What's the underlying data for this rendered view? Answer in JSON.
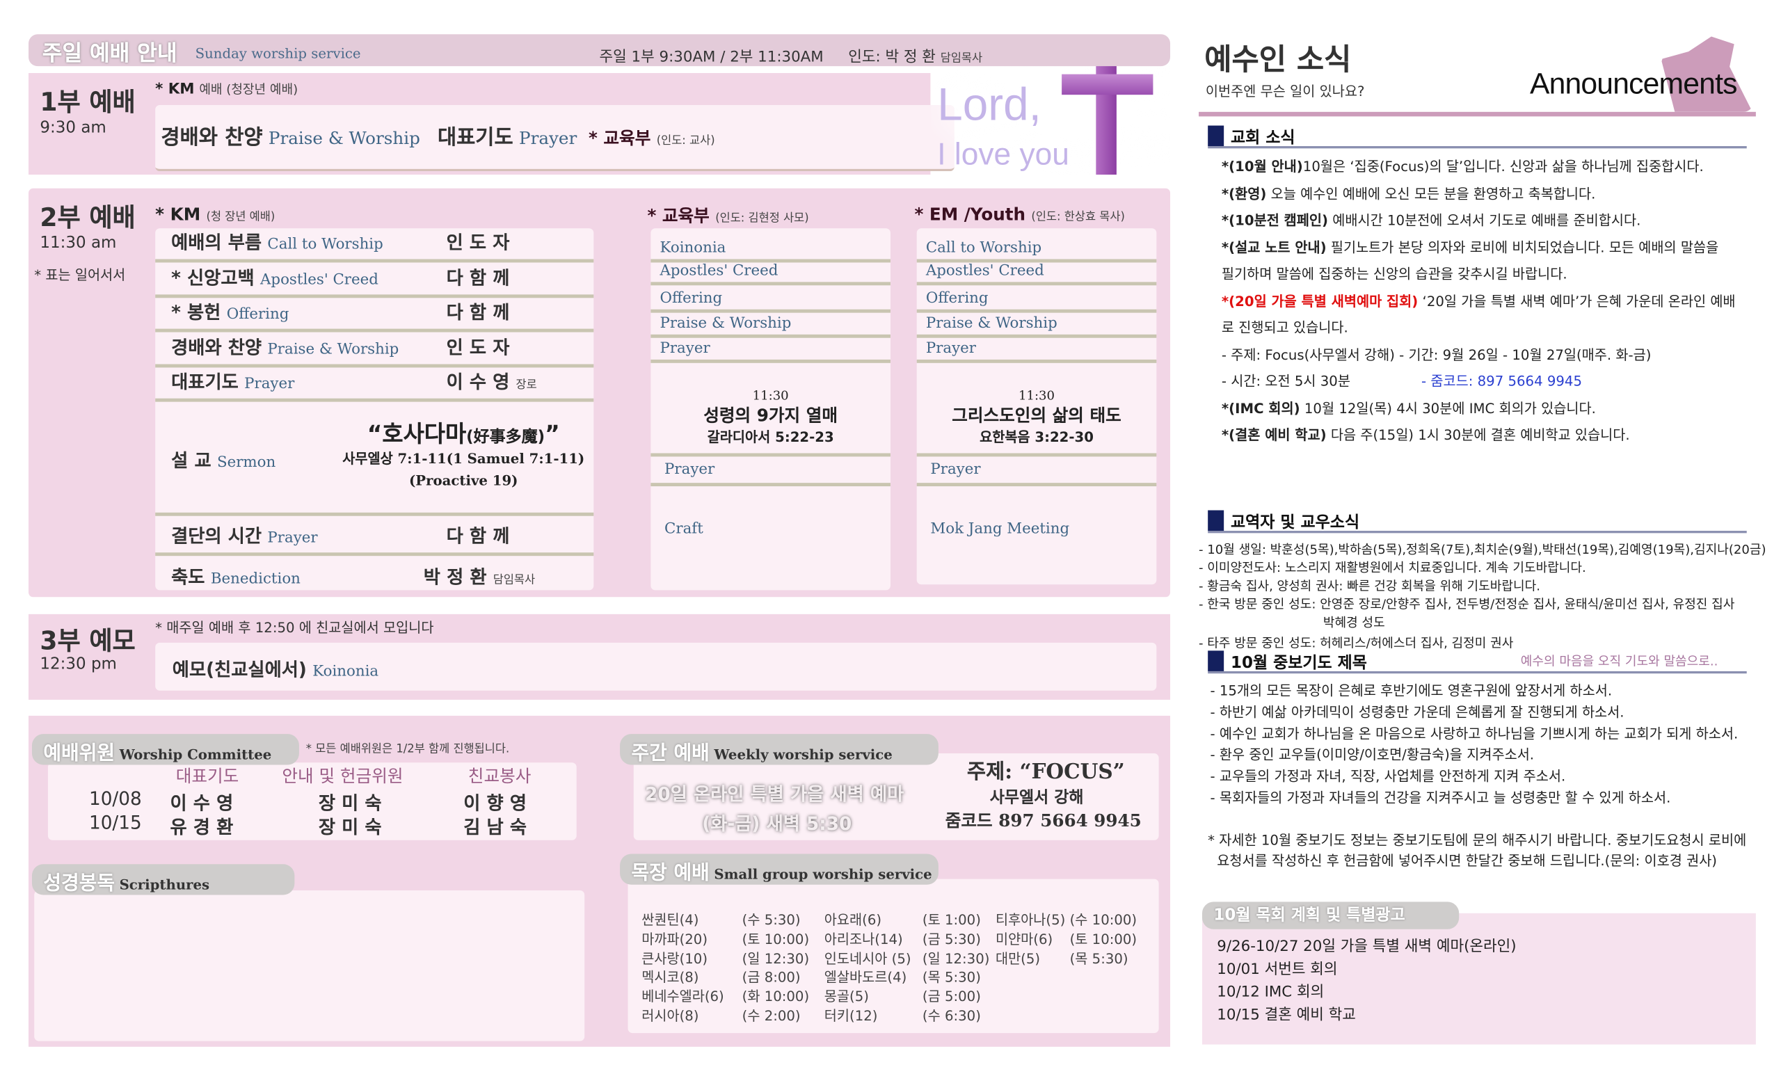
{
  "header": {
    "title_ko": "주일 예배 안내",
    "title_en": "Sunday worship service",
    "times": "주일 1부 9:30AM / 2부 11:30AM",
    "leader": "인도: 박 정 환",
    "leader_role": "담임목사"
  },
  "banner": {
    "line1": "Lord,",
    "line2": "I love you"
  },
  "service1": {
    "title": "1부 예배",
    "time": "9:30 am",
    "note_ko": "* KM",
    "note_rest": "예배 (청장년 예배)",
    "item1_ko": "경배와 찬양",
    "item1_en": "Praise & Worship",
    "item2_ko": "대표기도",
    "item2_en": "Prayer",
    "edu": "* 교육부",
    "edu_note": "(인도: 교사)"
  },
  "service2": {
    "title": "2부 예배",
    "time": "11:30 am",
    "standing_note": "* 표는 일어서서",
    "km": {
      "title": "* KM",
      "note": "(청 장년 예배)",
      "rows": [
        {
          "ko": "예배의 부름",
          "en": "Call to Worship",
          "who": "인 도 자",
          "role": ""
        },
        {
          "ko": "* 신앙고백",
          "en": "Apostles' Creed",
          "who": "다 함 께",
          "role": ""
        },
        {
          "ko": "* 봉헌",
          "en": "Offering",
          "who": "다 함 께",
          "role": ""
        },
        {
          "ko": "경배와 찬양",
          "en": "Praise & Worship",
          "who": "인 도 자",
          "role": ""
        },
        {
          "ko": "대표기도",
          "en": "Prayer",
          "who": "이 수 영",
          "role": "장로"
        }
      ],
      "sermon": {
        "ko": "설 교",
        "en": "Sermon",
        "title": "“호사다마",
        "hanja": "(好事多魔)",
        "close": "”",
        "verse": "사무엘상 7:1-11(1 Samuel 7:1-11)",
        "series": "(Proactive 19)"
      },
      "rows2": [
        {
          "ko": "결단의 시간",
          "en": "Prayer",
          "who": "다 함 께",
          "role": ""
        },
        {
          "ko": "축도",
          "en": "Benediction",
          "who": "박 정 환",
          "role": "담임목사"
        }
      ]
    },
    "edu": {
      "title": "* 교육부",
      "note": "(인도:  김현정 사모)",
      "items": [
        "Koinonia",
        "Apostles' Creed",
        "Offering",
        "Praise & Worship",
        "Prayer"
      ],
      "time": "11:30",
      "sermon": "성령의 9가지 열매",
      "verse": "갈라디아서 5:22-23",
      "after": [
        "Prayer",
        "Craft"
      ]
    },
    "em": {
      "title": "* EM /Youth",
      "note": "(인도: 한상효 목사)",
      "items": [
        "Call to Worship",
        "Apostles' Creed",
        "Offering",
        "Praise & Worship",
        "Prayer"
      ],
      "time": "11:30",
      "sermon": "그리스도인의 삶의 태도",
      "verse": "요한복음 3:22-30",
      "after": [
        "Prayer",
        "Mok Jang Meeting"
      ]
    }
  },
  "service3": {
    "title": "3부 예모",
    "time": "12:30 pm",
    "note": "* 매주일 예배 후 12:50 에 친교실에서 모입니다",
    "item_ko": "예모(친교실에서)",
    "item_en": "Koinonia"
  },
  "committee": {
    "title_ko": "예배위원",
    "title_en": "Worship Committee",
    "note": "* 모든 예배위원은 1/2부 함께 진행됩니다.",
    "headers": [
      "대표기도",
      "안내 및 헌금위원",
      "친교봉사"
    ],
    "rows": [
      {
        "date": "10/08",
        "prayer": "이 수 영",
        "usher": "장 미 숙",
        "fellowship": "이 향 영"
      },
      {
        "date": "10/15",
        "prayer": "유 경 환",
        "usher": "장 미 숙",
        "fellowship": "김 남 숙"
      }
    ]
  },
  "scriptures": {
    "title_ko": "성경봉독",
    "title_en": "Scripthures"
  },
  "weekly": {
    "title_ko": "주간 예배",
    "title_en": "Weekly worship service",
    "line1": "20일 온라인 특별 가을 새벽 예마",
    "line2": "(화-금) 새벽 5:30",
    "theme": "주제: “FOCUS”",
    "speaker": "사무엘서 강해",
    "zoom": "줌코드 897 5664 9945"
  },
  "smallgroup": {
    "title_ko": "목장 예배",
    "title_en": "Small group worship service",
    "rows": [
      [
        [
          "싼퀀틴(4)",
          "(수 5:30)"
        ],
        [
          "아요래(6)",
          "(토 1:00)"
        ],
        [
          "티후아나(5)",
          "(수 10:00)"
        ]
      ],
      [
        [
          "마까파(20)",
          "(토 10:00)"
        ],
        [
          "아리조나(14)",
          "(금 5:30)"
        ],
        [
          "미얀마(6)",
          "(토 10:00)"
        ]
      ],
      [
        [
          "큰사랑(10)",
          "(일 12:30)"
        ],
        [
          "인도네시아 (5)",
          "(일 12:30)"
        ],
        [
          "대만(5)",
          "(목 5:30)"
        ]
      ],
      [
        [
          "멕시코(8)",
          "(금 8:00)"
        ],
        [
          "엘살바도르(4)",
          "(목 5:30)"
        ]
      ],
      [
        [
          "베네수엘라(6)",
          "(화 10:00)"
        ],
        [
          "몽골(5)",
          "(금 5:00)"
        ]
      ],
      [
        [
          "러시아(8)",
          "(수 2:00)"
        ],
        [
          "터키(12)",
          "(수 6:30)"
        ]
      ]
    ]
  },
  "announcements": {
    "title": "예수인 소식",
    "subtitle": "이번주엔 무슨 일이 있나요?",
    "title_en": "Announcements",
    "church": {
      "heading": "교회 소식",
      "items": [
        {
          "label": "*(10월 안내)",
          "text": "10월은 ‘집중(Focus)의 달’입니다. 신앙과 삶을 하나님께 집중합시다."
        },
        {
          "label": "*(환영)",
          "text": " 오늘 예수인 예배에 오신 모든 분을 환영하고 축복합니다."
        },
        {
          "label": "*(10분전 캠페인)",
          "text": " 예배시간 10분전에 오셔서 기도로 예배를 준비합시다."
        },
        {
          "label": "*(설교 노트 안내)",
          "text": " 필기노트가 본당 의자와 로비에 비치되었습니다. 모든 예배의 말씀을"
        },
        {
          "label": "",
          "text": "필기하며 말씀에 집중하는 신앙의 습관을 갖추시길 바랍니다."
        },
        {
          "label": "*(20일 가을 특별 새벽예마 집회)",
          "text": " ‘20일 가을 특별 새벽 예마’가 은혜 가운데 온라인 예배",
          "red": true
        },
        {
          "label": "",
          "text": "로 진행되고 있습니다."
        },
        {
          "label": "",
          "text": "  - 주제: Focus(사무엘서 강해)   - 기간: 9월 26일 - 10월 27일(매주. 화-금)"
        },
        {
          "label": "",
          "text": "  - 시간: 오전 5시 30분",
          "zoom": "- 줌코드: 897 5664 9945"
        },
        {
          "label": "*(IMC 회의)",
          "text": "  10월 12일(목) 4시 30분에 IMC 회의가 있습니다."
        },
        {
          "label": "*(결혼 예비 학교)",
          "text": "  다음 주(15일) 1시 30분에 결혼 예비학교 있습니다."
        }
      ]
    },
    "members": {
      "heading": "교역자 및 교우소식",
      "items": [
        "- 10월 생일: 박훈성(5목),박하솜(5목),정희옥(7토),최치순(9월),박태선(19목),김예영(19목),김지나(20금)",
        "- 이미양전도사: 노스리지 재활병원에서 치료중입니다. 계속 기도바랍니다.",
        "- 황금숙 집사, 양성희 권사: 빠른 건강 회복을 위해 기도바랍니다.",
        "- 한국 방문 중인 성도: 안영준 장로/안향주 집사, 전두병/전정순 집사, 윤태식/윤미선 집사, 유정진 집사",
        "박혜경 성도",
        "- 타주 방문 중인 성도: 허헤리스/허에스더 집사, 김정미 권사"
      ]
    },
    "prayer": {
      "heading": "10월 중보기도 제목",
      "motto": "예수의 마음을 오직 기도와 말씀으로..",
      "items": [
        "- 15개의 모든 목장이 은혜로 후반기에도 영혼구원에 앞장서게 하소서.",
        "- 하반기 예삶 아카데믹이 성령충만 가운데 은혜롭게 잘 진행되게 하소서.",
        "- 예수인 교회가 하나님을 온 마음으로 사랑하고 하나님을 기쁘시게 하는 교회가 되게 하소서.",
        "- 환우 중인 교우들(이미양/이호면/황금숙)을 지켜주소서.",
        "- 교우들의 가정과 자녀, 직장, 사업체를 안전하게 지켜 주소서.",
        "- 목회자들의 가정과 자녀들의 건강을 지켜주시고 늘 성령충만 할 수 있게 하소서."
      ],
      "note1": "* 자세한 10월 중보기도 정보는 중보기도팀에 문의 해주시기 바랍니다. 중보기도요청시 로비에",
      "note2": "요청서를 작성하신 후 헌금함에 넣어주시면 한달간 중보해 드립니다.(문의: 이호경 권사)"
    },
    "plan": {
      "heading": "10월 목회 계획 및 특별광고",
      "items": [
        "9/26-10/27 20일 가을 특별 새벽 예마(온라인)",
        "10/01 서번트 회의",
        "10/12 IMC 회의",
        "10/15 결혼 예비 학교"
      ]
    }
  },
  "colors": {
    "section_bg": "#f2d6e6",
    "header_bg": "#e3cbd9",
    "navy": "#14205e",
    "accent_red": "#e01010",
    "link_blue": "#2a3fd0",
    "english_blue": "#3f6585",
    "mauve": "#c9a0bd"
  }
}
